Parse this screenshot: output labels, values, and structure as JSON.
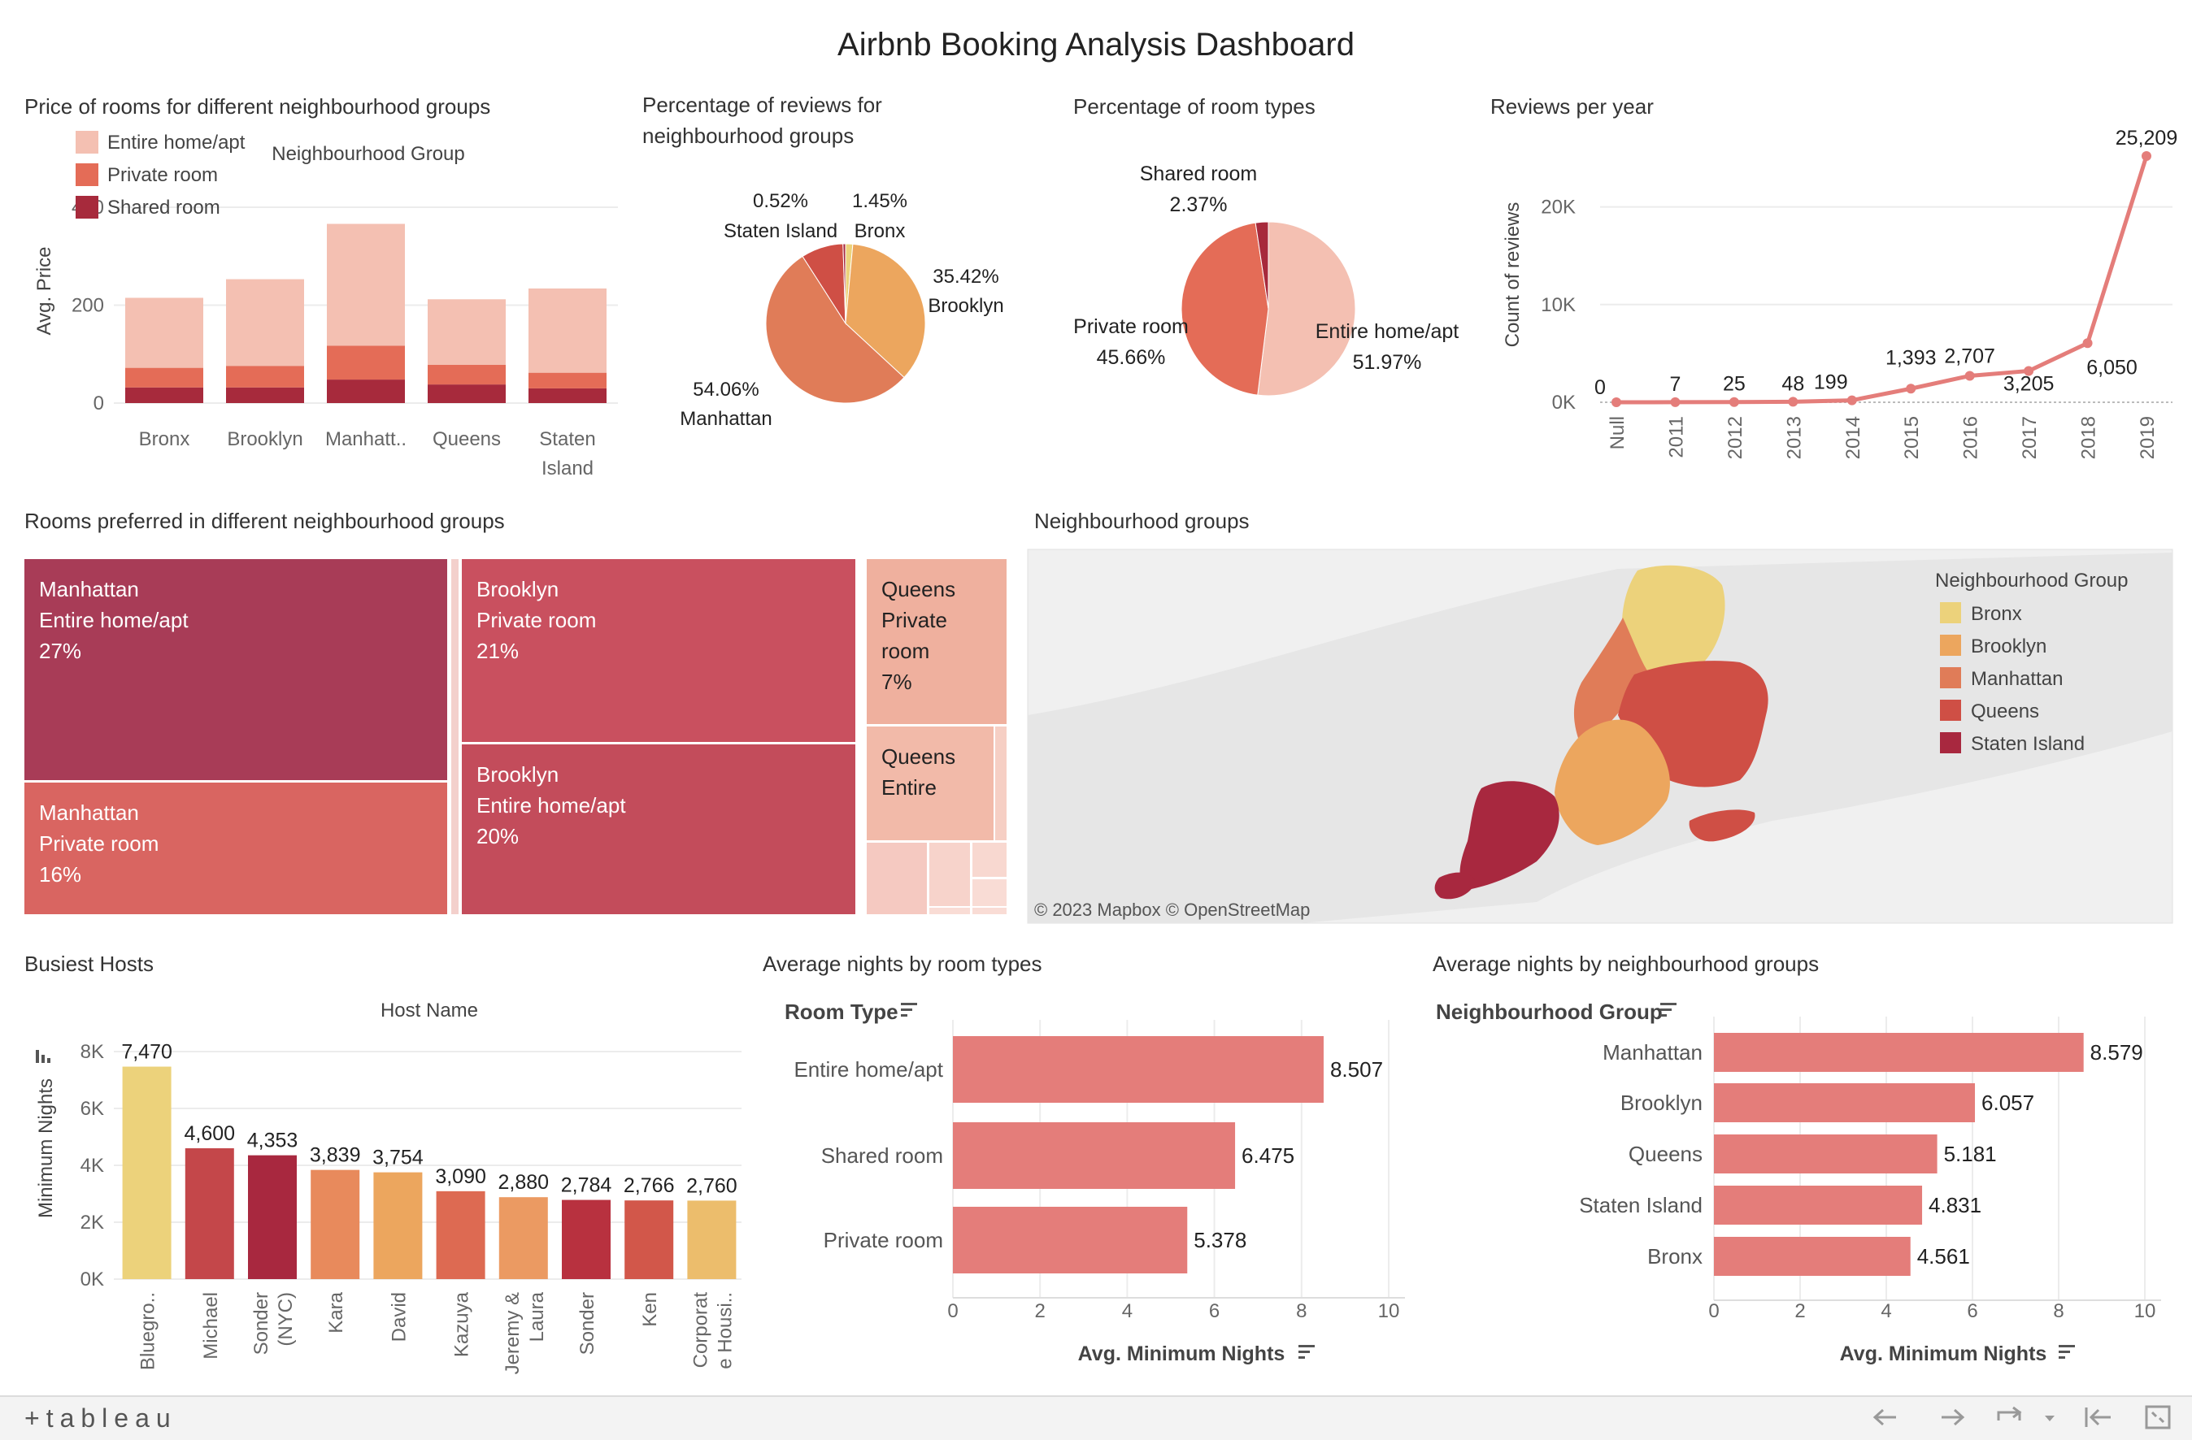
{
  "dashboard": {
    "title": "Airbnb Booking Analysis Dashboard",
    "colors": {
      "bronx": "#ecd27b",
      "brooklyn": "#eca65e",
      "manhattan": "#e07c58",
      "queens": "#cf4f45",
      "staten": "#a8283f",
      "entire": "#f4c0b2",
      "private": "#e46c57",
      "shared": "#a72a3c",
      "bar": "#e47d7a"
    },
    "price_chart": {
      "title": "Price of rooms for different neighbourhood groups",
      "column_header": "Neighbourhood Group",
      "ylabel": "Avg. Price",
      "legend": [
        "Entire home/apt",
        "Private room",
        "Shared room"
      ]
    },
    "reviews_pie": {
      "title_line1": "Percentage of reviews for",
      "title_line2": "neighbourhood groups"
    },
    "roomtype_pie": {
      "title": "Percentage of room types"
    },
    "reviews_year": {
      "title": "Reviews per year",
      "ylabel": "Count of reviews"
    },
    "treemap": {
      "title": "Rooms preferred in different neighbourhood groups"
    },
    "map": {
      "title": "Neighbourhood groups",
      "legend_title": "Neighbourhood Group",
      "legend": [
        "Bronx",
        "Brooklyn",
        "Manhattan",
        "Queens",
        "Staten Island"
      ],
      "attribution": "© 2023 Mapbox  © OpenStreetMap"
    },
    "hosts": {
      "title": "Busiest Hosts",
      "column_header": "Host Name",
      "ylabel": "Minimum Nights"
    },
    "nights_room": {
      "title": "Average nights by room types",
      "dim_header": "Room Type",
      "xlabel": "Avg. Minimum Nights"
    },
    "nights_ng": {
      "title": "Average nights by neighbourhood groups",
      "dim_header": "Neighbourhood Group",
      "xlabel": "Avg. Minimum Nights"
    },
    "footer": {
      "logo": "+tableau"
    }
  },
  "chart_data": [
    {
      "id": "price",
      "type": "bar",
      "stacked": true,
      "title": "Price of rooms for different neighbourhood groups",
      "xlabel": "Neighbourhood Group",
      "ylabel": "Avg. Price",
      "categories": [
        "Bronx",
        "Brooklyn",
        "Manhatt..",
        "Queens",
        "Staten Island"
      ],
      "series": [
        {
          "name": "Shared room",
          "values": [
            32,
            32,
            48,
            38,
            30
          ]
        },
        {
          "name": "Private room",
          "values": [
            40,
            44,
            69,
            40,
            32
          ]
        },
        {
          "name": "Entire home/apt",
          "values": [
            143,
            177,
            249,
            134,
            172
          ]
        }
      ],
      "ylim": [
        0,
        400
      ],
      "yticks": [
        0,
        200,
        400
      ],
      "legend": "top-left",
      "grid": true
    },
    {
      "id": "reviews_pie",
      "type": "pie",
      "title": "Percentage of reviews for neighbourhood groups",
      "labels": [
        "Bronx",
        "Brooklyn",
        "Manhattan",
        "Queens",
        "Staten Island"
      ],
      "values": [
        1.45,
        35.42,
        54.06,
        8.55,
        0.52
      ],
      "display": [
        "1.45%",
        "35.42%",
        "54.06%",
        "",
        "0.52%"
      ]
    },
    {
      "id": "roomtype_pie",
      "type": "pie",
      "title": "Percentage of room types",
      "labels": [
        "Entire home/apt",
        "Private room",
        "Shared room"
      ],
      "values": [
        51.97,
        45.66,
        2.37
      ],
      "display": [
        "51.97%",
        "45.66%",
        "2.37%"
      ]
    },
    {
      "id": "reviews_year",
      "type": "line",
      "title": "Reviews per year",
      "ylabel": "Count of reviews",
      "x": [
        "Null",
        "2011",
        "2012",
        "2013",
        "2014",
        "2015",
        "2016",
        "2017",
        "2018",
        "2019"
      ],
      "y": [
        0,
        7,
        25,
        48,
        199,
        1393,
        2707,
        3205,
        6050,
        25209
      ],
      "labels": [
        "0",
        "7",
        "25",
        "48",
        "199",
        "1,393",
        "2,707",
        "3,205",
        "6,050",
        "25,209"
      ],
      "ylim": [
        0,
        25209
      ],
      "yticks": [
        0,
        10000,
        20000
      ],
      "ytick_labels": [
        "0K",
        "10K",
        "20K"
      ],
      "grid": true
    },
    {
      "id": "treemap",
      "type": "treemap",
      "title": "Rooms preferred in different neighbourhood groups",
      "tiles": [
        {
          "group": "Manhattan",
          "room": "Entire home/apt",
          "pct": "27%"
        },
        {
          "group": "Manhattan",
          "room": "Private room",
          "pct": "16%"
        },
        {
          "group": "Brooklyn",
          "room": "Private room",
          "pct": "21%"
        },
        {
          "group": "Brooklyn",
          "room": "Entire home/apt",
          "pct": "20%"
        },
        {
          "group": "Queens",
          "room": "Private room",
          "pct": "7%"
        },
        {
          "group": "Queens",
          "room": "Entire",
          "pct": ""
        }
      ]
    },
    {
      "id": "hosts",
      "type": "bar",
      "title": "Busiest Hosts",
      "xlabel": "Host Name",
      "ylabel": "Minimum Nights",
      "categories": [
        "Bluegro..",
        "Michael",
        "Sonder (NYC)",
        "Kara",
        "David",
        "Kazuya",
        "Jeremy & Laura",
        "Sonder",
        "Ken",
        "Corporate Housi.."
      ],
      "tick_lines": [
        [
          "Bluegro.."
        ],
        [
          "Michael"
        ],
        [
          "Sonder",
          "(NYC)"
        ],
        [
          "Kara"
        ],
        [
          "David"
        ],
        [
          "Kazuya"
        ],
        [
          "Jeremy &",
          "Laura"
        ],
        [
          "Sonder"
        ],
        [
          "Ken"
        ],
        [
          "Corporat",
          "e Housi.."
        ]
      ],
      "values": [
        7470,
        4600,
        4353,
        3839,
        3754,
        3090,
        2880,
        2784,
        2766,
        2760
      ],
      "labels": [
        "7,470",
        "4,600",
        "4,353",
        "3,839",
        "3,754",
        "3,090",
        "2,880",
        "2,784",
        "2,766",
        "2,760"
      ],
      "colors": [
        "#ecd27b",
        "#c4474a",
        "#a8283f",
        "#e88a5c",
        "#eca65e",
        "#dd6a52",
        "#eb9a62",
        "#b8313f",
        "#d2574a",
        "#ecbd6c"
      ],
      "ylim": [
        0,
        8000
      ],
      "yticks": [
        0,
        2000,
        4000,
        6000,
        8000
      ],
      "ytick_labels": [
        "0K",
        "2K",
        "4K",
        "6K",
        "8K"
      ],
      "grid": true
    },
    {
      "id": "nights_room",
      "type": "bar",
      "orientation": "horizontal",
      "title": "Average nights by room types",
      "categories": [
        "Entire home/apt",
        "Shared room",
        "Private room"
      ],
      "values": [
        8.507,
        6.475,
        5.378
      ],
      "labels": [
        "8.507",
        "6.475",
        "5.378"
      ],
      "xlabel": "Avg. Minimum Nights",
      "xlim": [
        0,
        10
      ],
      "xticks": [
        0,
        2,
        4,
        6,
        8,
        10
      ],
      "grid": true
    },
    {
      "id": "nights_ng",
      "type": "bar",
      "orientation": "horizontal",
      "title": "Average nights by neighbourhood groups",
      "categories": [
        "Manhattan",
        "Brooklyn",
        "Queens",
        "Staten Island",
        "Bronx"
      ],
      "values": [
        8.579,
        6.057,
        5.181,
        4.831,
        4.561
      ],
      "labels": [
        "8.579",
        "6.057",
        "5.181",
        "4.831",
        "4.561"
      ],
      "xlabel": "Avg. Minimum Nights",
      "xlim": [
        0,
        10
      ],
      "xticks": [
        0,
        2,
        4,
        6,
        8,
        10
      ],
      "grid": true
    }
  ]
}
